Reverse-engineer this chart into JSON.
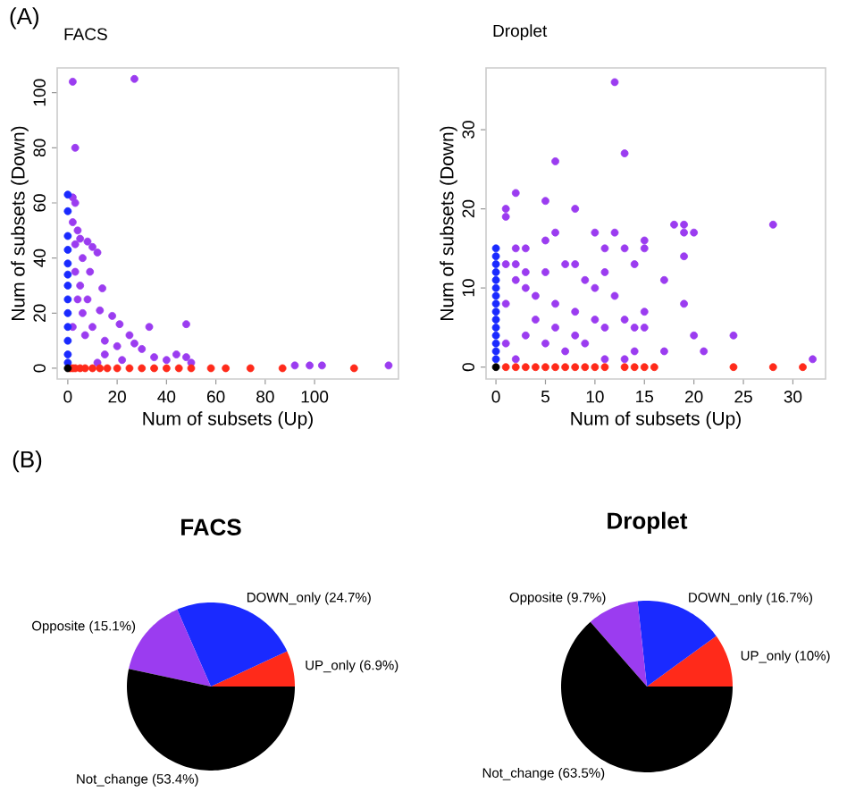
{
  "chart_data": [
    {
      "type": "scatter",
      "title": "FACS",
      "xlabel": "Num of subsets (Up)",
      "ylabel": "Num of subsets (Down)",
      "annotations": [
        "(A)"
      ],
      "xlim": [
        -4.3,
        134
      ],
      "ylim": [
        -3.9,
        109
      ],
      "xticks": [
        0,
        20,
        40,
        60,
        80,
        100
      ],
      "yticks": [
        0,
        20,
        40,
        60,
        80,
        100
      ],
      "marker": "circle",
      "grid": false,
      "series": [
        {
          "color": "#9b3cf0",
          "x": [
            2,
            27,
            3,
            2,
            3,
            2,
            4,
            5,
            8,
            10,
            12,
            3,
            6,
            9,
            14,
            5,
            8,
            13,
            18,
            21,
            25,
            33,
            48,
            27,
            30,
            35,
            40,
            44,
            48,
            50,
            92,
            98,
            103,
            130,
            15,
            10,
            6,
            4,
            20,
            15,
            3,
            7,
            2,
            12,
            22
          ],
          "values": [
            104,
            105,
            80,
            62,
            60,
            53,
            50,
            47,
            46,
            44,
            42,
            45,
            40,
            35,
            29,
            30,
            25,
            21,
            19,
            16,
            12,
            15,
            16,
            9,
            7,
            4,
            3,
            5,
            4,
            2,
            1,
            1,
            1,
            1,
            10,
            15,
            20,
            25,
            8,
            5,
            35,
            12,
            15,
            2,
            3
          ]
        },
        {
          "color": "#ff2a1a",
          "x": [
            1,
            2,
            3,
            5,
            7,
            10,
            13,
            16,
            20,
            25,
            30,
            35,
            40,
            45,
            50,
            58,
            64,
            74,
            87,
            116
          ],
          "values": [
            0,
            0,
            0,
            0,
            0,
            0,
            0,
            0,
            0,
            0,
            0,
            0,
            0,
            0,
            0,
            0,
            0,
            0,
            0,
            0
          ]
        },
        {
          "color": "#1a2aff",
          "x": [
            0,
            0,
            0,
            0,
            0,
            0,
            0,
            0,
            0,
            0,
            0,
            0,
            0
          ],
          "values": [
            63,
            57,
            48,
            43,
            38,
            34,
            30,
            25,
            20,
            15,
            10,
            5,
            2
          ]
        },
        {
          "color": "#000000",
          "x": [
            0
          ],
          "values": [
            0
          ]
        }
      ]
    },
    {
      "type": "scatter",
      "title": "Droplet",
      "xlabel": "Num of subsets (Up)",
      "ylabel": "Num of subsets (Down)",
      "xlim": [
        -1,
        33.3
      ],
      "ylim": [
        -1.5,
        37.8
      ],
      "xticks": [
        0,
        5,
        10,
        15,
        20,
        25,
        30
      ],
      "yticks": [
        0,
        10,
        20,
        30
      ],
      "marker": "circle",
      "grid": false,
      "series": [
        {
          "color": "#9b3cf0",
          "x": [
            12,
            13,
            6,
            2,
            5,
            1,
            8,
            1,
            10,
            12,
            18,
            19,
            19,
            20,
            28,
            15,
            15,
            5,
            6,
            11,
            13,
            2,
            3,
            14,
            19,
            17,
            11,
            7,
            8,
            19,
            20,
            24,
            21,
            17,
            32,
            13,
            14,
            15,
            14,
            15,
            13,
            12,
            10,
            9,
            5,
            3,
            2,
            1,
            4,
            6,
            8,
            10,
            11,
            1,
            3,
            5,
            7,
            9,
            11,
            2,
            4,
            6,
            8,
            1,
            2,
            3
          ],
          "values": [
            36,
            27,
            26,
            22,
            21,
            20,
            20,
            19,
            17,
            17,
            18,
            18,
            17,
            17,
            18,
            16,
            15,
            16,
            17,
            15,
            15,
            15,
            15,
            13,
            14,
            11,
            12,
            13,
            13,
            8,
            4,
            4,
            2,
            2,
            1,
            1,
            2,
            5,
            5,
            7,
            6,
            9,
            10,
            11,
            12,
            10,
            11,
            8,
            9,
            8,
            7,
            6,
            5,
            3,
            4,
            3,
            2,
            3,
            1,
            1,
            6,
            5,
            4,
            13,
            13,
            12
          ]
        },
        {
          "color": "#ff2a1a",
          "x": [
            1,
            2,
            3,
            4,
            5,
            6,
            7,
            8,
            9,
            10,
            11,
            13,
            14,
            15,
            16,
            24,
            28,
            31
          ],
          "values": [
            0,
            0,
            0,
            0,
            0,
            0,
            0,
            0,
            0,
            0,
            0,
            0,
            0,
            0,
            0,
            0,
            0,
            0
          ]
        },
        {
          "color": "#1a2aff",
          "x": [
            0,
            0,
            0,
            0,
            0,
            0,
            0,
            0,
            0,
            0,
            0,
            0,
            0,
            0,
            0
          ],
          "values": [
            1,
            2,
            3,
            4,
            5,
            6,
            7,
            8,
            9,
            10,
            11,
            12,
            13,
            14,
            15
          ]
        },
        {
          "color": "#000000",
          "x": [
            0
          ],
          "values": [
            0
          ]
        }
      ]
    },
    {
      "type": "pie",
      "title": "FACS",
      "annotations": [
        "(B)"
      ],
      "categories": [
        "UP_only (6.9%)",
        "DOWN_only (24.7%)",
        "Opposite (15.1%)",
        "Not_change (53.4%)"
      ],
      "values": [
        6.9,
        24.7,
        15.1,
        53.4
      ],
      "colors": [
        "#ff2a1a",
        "#1a2aff",
        "#9b3cf0",
        "#000000"
      ]
    },
    {
      "type": "pie",
      "title": "Droplet",
      "categories": [
        "UP_only (10%)",
        "DOWN_only (16.7%)",
        "Opposite (9.7%)",
        "Not_change (63.5%)"
      ],
      "values": [
        10,
        16.7,
        9.7,
        63.5
      ],
      "colors": [
        "#ff2a1a",
        "#1a2aff",
        "#9b3cf0",
        "#000000"
      ]
    }
  ]
}
